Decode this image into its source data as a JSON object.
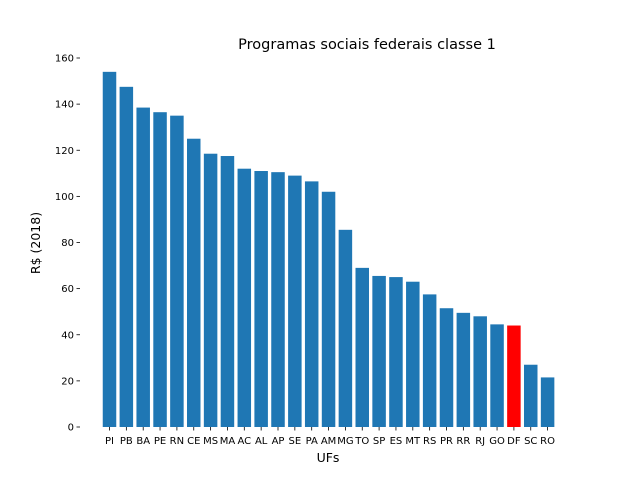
{
  "chart_data": {
    "type": "bar",
    "title": "Programas sociais federais classe 1",
    "xlabel": "UFs",
    "ylabel": "R$ (2018)",
    "ylim": [
      0,
      160
    ],
    "yticks": [
      0,
      20,
      40,
      60,
      80,
      100,
      120,
      140,
      160
    ],
    "grid": false,
    "default_color": "#1f77b4",
    "highlight_color": "#ff0000",
    "highlight_category": "DF",
    "categories": [
      "PI",
      "PB",
      "BA",
      "PE",
      "RN",
      "CE",
      "MS",
      "MA",
      "AC",
      "AL",
      "AP",
      "SE",
      "PA",
      "AM",
      "MG",
      "TO",
      "SP",
      "ES",
      "MT",
      "RS",
      "PR",
      "RR",
      "RJ",
      "GO",
      "DF",
      "SC",
      "RO"
    ],
    "values": [
      154,
      147.5,
      138.5,
      136.5,
      135,
      125,
      118.5,
      117.5,
      112,
      111,
      110.5,
      109,
      106.5,
      102,
      85.5,
      69,
      65.5,
      65,
      63,
      57.5,
      51.5,
      49.5,
      48,
      44.5,
      44,
      27,
      21.5
    ]
  }
}
